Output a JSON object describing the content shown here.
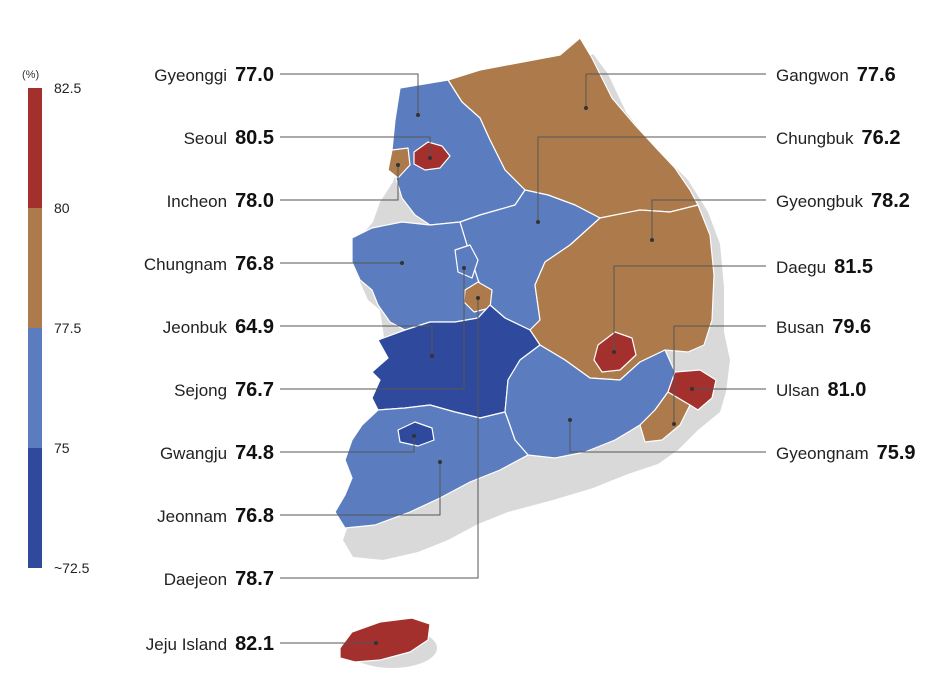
{
  "legend": {
    "unit": "(%)",
    "ticks": [
      "82.5",
      "80",
      "77.5",
      "75",
      "~72.5"
    ],
    "colors": {
      "high": "#a3302d",
      "mid_high": "#ad7a4c",
      "mid_low": "#5b7dbf",
      "low": "#2f4a9c"
    }
  },
  "regions": [
    {
      "key": "gyeonggi",
      "name": "Gyeonggi",
      "value": "77.0",
      "color": "#5b7dbf"
    },
    {
      "key": "seoul",
      "name": "Seoul",
      "value": "80.5",
      "color": "#a3302d"
    },
    {
      "key": "incheon",
      "name": "Incheon",
      "value": "78.0",
      "color": "#ad7a4c"
    },
    {
      "key": "chungnam",
      "name": "Chungnam",
      "value": "76.8",
      "color": "#5b7dbf"
    },
    {
      "key": "jeonbuk",
      "name": "Jeonbuk",
      "value": "64.9",
      "color": "#2f4a9c"
    },
    {
      "key": "sejong",
      "name": "Sejong",
      "value": "76.7",
      "color": "#5b7dbf"
    },
    {
      "key": "gwangju",
      "name": "Gwangju",
      "value": "74.8",
      "color": "#2f4a9c"
    },
    {
      "key": "jeonnam",
      "name": "Jeonnam",
      "value": "76.8",
      "color": "#5b7dbf"
    },
    {
      "key": "daejeon",
      "name": "Daejeon",
      "value": "78.7",
      "color": "#ad7a4c"
    },
    {
      "key": "jeju",
      "name": "Jeju Island",
      "value": "82.1",
      "color": "#a3302d"
    },
    {
      "key": "gangwon",
      "name": "Gangwon",
      "value": "77.6",
      "color": "#ad7a4c"
    },
    {
      "key": "chungbuk",
      "name": "Chungbuk",
      "value": "76.2",
      "color": "#5b7dbf"
    },
    {
      "key": "gyeongbuk",
      "name": "Gyeongbuk",
      "value": "78.2",
      "color": "#ad7a4c"
    },
    {
      "key": "daegu",
      "name": "Daegu",
      "value": "81.5",
      "color": "#a3302d"
    },
    {
      "key": "busan",
      "name": "Busan",
      "value": "79.6",
      "color": "#ad7a4c"
    },
    {
      "key": "ulsan",
      "name": "Ulsan",
      "value": "81.0",
      "color": "#a3302d"
    },
    {
      "key": "gyeongnam",
      "name": "Gyeongnam",
      "value": "75.9",
      "color": "#5b7dbf"
    }
  ]
}
